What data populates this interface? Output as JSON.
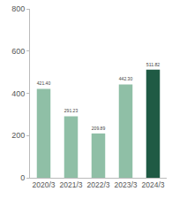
{
  "chart_data": {
    "type": "bar",
    "categories": [
      "2020/3",
      "2021/3",
      "2022/3",
      "2023/3",
      "2024/3"
    ],
    "values": [
      421.4,
      291.23,
      209.89,
      442.3,
      511.82
    ],
    "value_labels": [
      "421.40",
      "291.23",
      "209.89",
      "442.30",
      "511.82"
    ],
    "colors": [
      "#8fbfa6",
      "#8fbfa6",
      "#8fbfa6",
      "#8fbfa6",
      "#1f5a44"
    ],
    "ylim": [
      0,
      800
    ],
    "yticks": [
      0,
      200,
      400,
      600,
      800
    ],
    "grid": false,
    "data_labels": true
  }
}
